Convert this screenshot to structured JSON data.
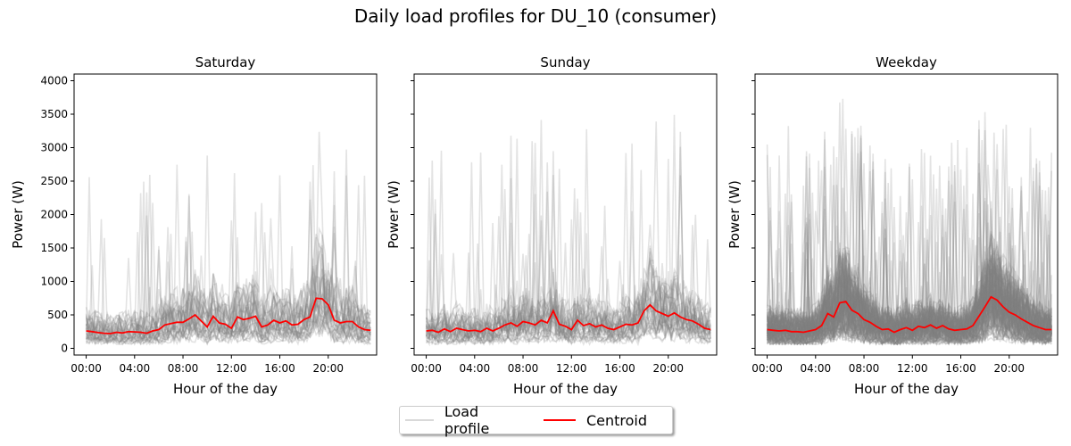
{
  "title": "Daily load profiles for DU_10 (consumer)",
  "legend": {
    "profile_label": "Load profile",
    "centroid_label": "Centroid",
    "profile_color": "#808080",
    "centroid_color": "#ff0000",
    "placement": "bottom-center"
  },
  "chart_data": [
    {
      "type": "line",
      "title": "Saturday",
      "xlabel": "Hour of the day",
      "ylabel": "Power (W)",
      "xlim": [
        -1,
        24
      ],
      "ylim": [
        -100,
        4100
      ],
      "xticks": [
        0,
        4,
        8,
        12,
        16,
        20
      ],
      "xtick_labels": [
        "00:00",
        "04:00",
        "08:00",
        "12:00",
        "16:00",
        "20:00"
      ],
      "yticks": [
        0,
        500,
        1000,
        1500,
        2000,
        2500,
        3000,
        3500,
        4000
      ],
      "ytick_labels": [
        "0",
        "500",
        "1000",
        "1500",
        "2000",
        "2500",
        "3000",
        "3500",
        "4000"
      ],
      "grid": false,
      "profile_count": 35,
      "profile_peak": 3350,
      "centroid": {
        "name": "Centroid",
        "x": [
          0,
          0.5,
          1,
          1.5,
          2,
          2.5,
          3,
          3.5,
          4,
          4.5,
          5,
          5.5,
          6,
          6.5,
          7,
          7.5,
          8,
          8.5,
          9,
          9.5,
          10,
          10.5,
          11,
          11.5,
          12,
          12.5,
          13,
          13.5,
          14,
          14.5,
          15,
          15.5,
          16,
          16.5,
          17,
          17.5,
          18,
          18.5,
          19,
          19.5,
          20,
          20.5,
          21,
          21.5,
          22,
          22.5,
          23,
          23.5
        ],
        "y": [
          260,
          250,
          235,
          225,
          220,
          240,
          230,
          250,
          245,
          240,
          225,
          260,
          280,
          350,
          370,
          390,
          390,
          440,
          500,
          410,
          320,
          480,
          380,
          360,
          300,
          470,
          430,
          450,
          480,
          320,
          350,
          420,
          380,
          410,
          350,
          360,
          430,
          470,
          750,
          740,
          650,
          420,
          380,
          400,
          400,
          320,
          280,
          270
        ]
      }
    },
    {
      "type": "line",
      "title": "Sunday",
      "xlabel": "Hour of the day",
      "ylabel": "Power (W)",
      "xlim": [
        -1,
        24
      ],
      "ylim": [
        -100,
        4100
      ],
      "xticks": [
        0,
        4,
        8,
        12,
        16,
        20
      ],
      "xtick_labels": [
        "00:00",
        "04:00",
        "08:00",
        "12:00",
        "16:00",
        "20:00"
      ],
      "yticks": [
        0,
        500,
        1000,
        1500,
        2000,
        2500,
        3000,
        3500,
        4000
      ],
      "ytick_labels": [
        "",
        "",
        "",
        "",
        "",
        "",
        "",
        "",
        ""
      ],
      "grid": false,
      "profile_count": 35,
      "profile_peak": 3900,
      "centroid": {
        "name": "Centroid",
        "x": [
          0,
          0.5,
          1,
          1.5,
          2,
          2.5,
          3,
          3.5,
          4,
          4.5,
          5,
          5.5,
          6,
          6.5,
          7,
          7.5,
          8,
          8.5,
          9,
          9.5,
          10,
          10.5,
          11,
          11.5,
          12,
          12.5,
          13,
          13.5,
          14,
          14.5,
          15,
          15.5,
          16,
          16.5,
          17,
          17.5,
          18,
          18.5,
          19,
          19.5,
          20,
          20.5,
          21,
          21.5,
          22,
          22.5,
          23,
          23.5
        ],
        "y": [
          260,
          270,
          240,
          290,
          250,
          300,
          280,
          260,
          270,
          250,
          300,
          260,
          300,
          350,
          380,
          330,
          400,
          380,
          350,
          420,
          380,
          560,
          360,
          330,
          280,
          420,
          340,
          370,
          320,
          350,
          300,
          280,
          320,
          360,
          350,
          380,
          560,
          650,
          560,
          520,
          480,
          530,
          470,
          430,
          410,
          360,
          300,
          280
        ]
      }
    },
    {
      "type": "line",
      "title": "Weekday",
      "xlabel": "Hour of the day",
      "ylabel": "Power (W)",
      "xlim": [
        -1,
        24
      ],
      "ylim": [
        -100,
        4100
      ],
      "xticks": [
        0,
        4,
        8,
        12,
        16,
        20
      ],
      "xtick_labels": [
        "00:00",
        "04:00",
        "08:00",
        "12:00",
        "16:00",
        "20:00"
      ],
      "yticks": [
        0,
        500,
        1000,
        1500,
        2000,
        2500,
        3000,
        3500,
        4000
      ],
      "ytick_labels": [
        "",
        "",
        "",
        "",
        "",
        "",
        "",
        "",
        ""
      ],
      "grid": false,
      "profile_count": 120,
      "profile_peak": 3870,
      "centroid": {
        "name": "Centroid",
        "x": [
          0,
          0.5,
          1,
          1.5,
          2,
          2.5,
          3,
          3.5,
          4,
          4.5,
          5,
          5.5,
          6,
          6.5,
          7,
          7.5,
          8,
          8.5,
          9,
          9.5,
          10,
          10.5,
          11,
          11.5,
          12,
          12.5,
          13,
          13.5,
          14,
          14.5,
          15,
          15.5,
          16,
          16.5,
          17,
          17.5,
          18,
          18.5,
          19,
          19.5,
          20,
          20.5,
          21,
          21.5,
          22,
          22.5,
          23,
          23.5
        ],
        "y": [
          280,
          270,
          260,
          270,
          250,
          250,
          240,
          260,
          280,
          340,
          520,
          470,
          680,
          700,
          570,
          520,
          430,
          390,
          330,
          280,
          290,
          240,
          280,
          310,
          270,
          330,
          310,
          350,
          300,
          340,
          290,
          270,
          280,
          290,
          340,
          480,
          620,
          770,
          720,
          620,
          540,
          500,
          440,
          390,
          340,
          310,
          280,
          280
        ]
      }
    }
  ]
}
